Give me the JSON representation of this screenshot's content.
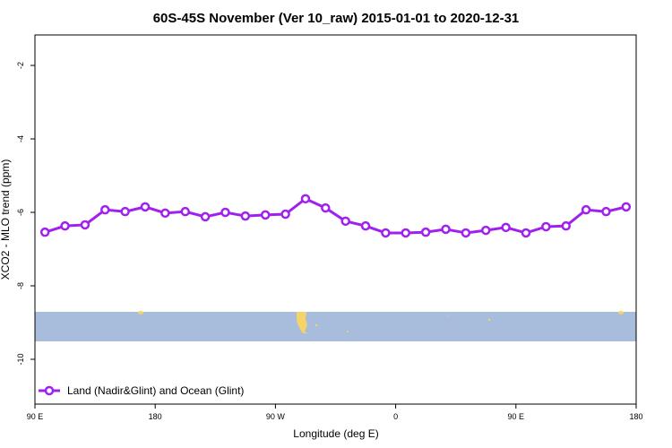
{
  "chart_data": {
    "type": "line",
    "title": "60S-45S November (Ver 10_raw)   2015-01-01 to 2020-12-31",
    "x_label": "Longitude (deg E)",
    "y_label": "XCO2 - MLO trend (ppm)",
    "x": [
      97.5,
      112.5,
      127.5,
      142.5,
      157.5,
      172.5,
      187.5,
      202.5,
      217.5,
      232.5,
      247.5,
      262.5,
      277.5,
      292.5,
      307.5,
      322.5,
      337.5,
      352.5,
      367.5,
      382.5,
      397.5,
      412.5,
      427.5,
      442.5,
      457.5,
      472.5,
      487.5,
      502.5,
      517.5,
      532.5
    ],
    "series": [
      {
        "name": "Land (Nadir&Glint) and Ocean (Glint)",
        "color": "#a020f0",
        "values": [
          -6.54,
          -6.37,
          -6.34,
          -5.93,
          -5.98,
          -5.85,
          -6.02,
          -5.98,
          -6.12,
          -6.0,
          -6.1,
          -6.07,
          -6.05,
          -5.63,
          -5.88,
          -6.24,
          -6.37,
          -6.56,
          -6.56,
          -6.54,
          -6.46,
          -6.56,
          -6.49,
          -6.41,
          -6.56,
          -6.39,
          -6.37,
          -5.93,
          -5.98,
          -5.85
        ]
      }
    ],
    "xlim": [
      90,
      540
    ],
    "xticks": [
      {
        "value": 90,
        "label": "90 E"
      },
      180,
      {
        "value": 270,
        "label": "90 W"
      },
      {
        "value": 360,
        "label": "0"
      },
      {
        "value": 450,
        "label": "90 E"
      },
      {
        "value": 540,
        "label": "180"
      }
    ],
    "ylim": [
      -11.22,
      -1.17
    ],
    "yticks": [
      -2,
      -4,
      -6,
      -8,
      -10
    ],
    "legend": "bottom-left"
  }
}
